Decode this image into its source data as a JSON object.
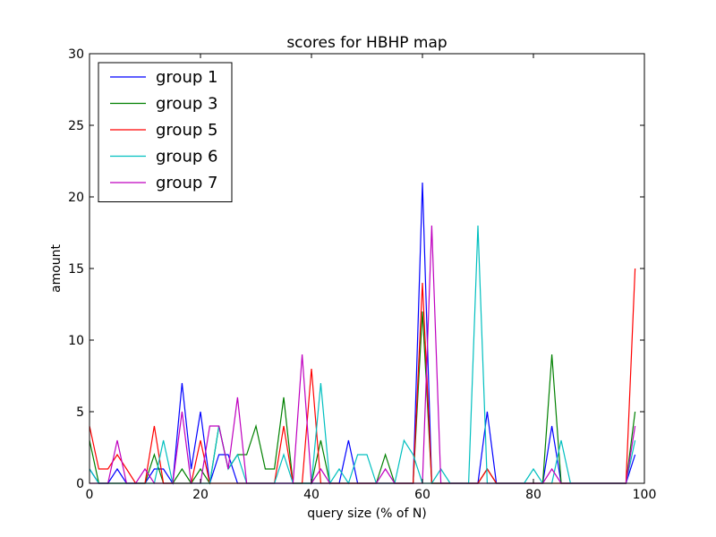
{
  "chart_data": {
    "type": "line",
    "title": "scores for HBHP map",
    "xlabel": "query size (% of N)",
    "ylabel": "amount",
    "xlim": [
      0,
      100
    ],
    "ylim": [
      0,
      30
    ],
    "xticks": [
      0,
      20,
      40,
      60,
      80,
      100
    ],
    "yticks": [
      0,
      5,
      10,
      15,
      20,
      25,
      30
    ],
    "grid": false,
    "legend_position": "top-left",
    "x": [
      0,
      1.67,
      3.33,
      5,
      6.67,
      8.33,
      10,
      11.67,
      13.33,
      15,
      16.67,
      18.33,
      20,
      21.67,
      23.33,
      25,
      26.67,
      28.33,
      30,
      31.67,
      33.33,
      35,
      36.67,
      38.33,
      40,
      41.67,
      43.33,
      45,
      46.67,
      48.33,
      50,
      51.67,
      53.33,
      55,
      56.67,
      58.33,
      60,
      61.67,
      63.33,
      65,
      66.67,
      68.33,
      70,
      71.67,
      73.33,
      75,
      76.67,
      78.33,
      80,
      81.67,
      83.33,
      85,
      86.67,
      88.33,
      90,
      91.67,
      93.33,
      95,
      96.67,
      98.33
    ],
    "series": [
      {
        "name": "group 1",
        "color": "#0000ff",
        "values": [
          1,
          0,
          0,
          1,
          0,
          0,
          0,
          1,
          1,
          0,
          7,
          1,
          5,
          0,
          2,
          2,
          0,
          0,
          0,
          0,
          0,
          0,
          0,
          0,
          0,
          0,
          0,
          0,
          3,
          0,
          0,
          0,
          0,
          0,
          0,
          0,
          21,
          0,
          0,
          0,
          0,
          0,
          0,
          5,
          0,
          0,
          0,
          0,
          0,
          0,
          4,
          0,
          0,
          0,
          0,
          0,
          0,
          0,
          0,
          2
        ]
      },
      {
        "name": "group 3",
        "color": "#008000",
        "values": [
          3,
          0,
          0,
          0,
          0,
          0,
          0,
          2,
          0,
          0,
          1,
          0,
          1,
          0,
          4,
          1,
          2,
          2,
          4,
          1,
          1,
          6,
          0,
          0,
          0,
          3,
          0,
          0,
          0,
          0,
          0,
          0,
          2,
          0,
          0,
          0,
          12,
          0,
          0,
          0,
          0,
          0,
          0,
          1,
          0,
          0,
          0,
          0,
          0,
          0,
          9,
          0,
          0,
          0,
          0,
          0,
          0,
          0,
          0,
          5
        ]
      },
      {
        "name": "group 5",
        "color": "#ff0000",
        "values": [
          4,
          1,
          1,
          2,
          1,
          0,
          0,
          4,
          0,
          0,
          0,
          0,
          3,
          0,
          0,
          0,
          0,
          0,
          0,
          0,
          0,
          4,
          0,
          0,
          8,
          0,
          0,
          0,
          0,
          0,
          0,
          0,
          0,
          0,
          0,
          0,
          14,
          0,
          0,
          0,
          0,
          0,
          0,
          1,
          0,
          0,
          0,
          0,
          0,
          0,
          0,
          0,
          0,
          0,
          0,
          0,
          0,
          0,
          0,
          15
        ]
      },
      {
        "name": "group 6",
        "color": "#00bfbf",
        "values": [
          1,
          0,
          0,
          0,
          0,
          0,
          0,
          0,
          3,
          0,
          0,
          0,
          0,
          0,
          4,
          1,
          2,
          0,
          0,
          0,
          0,
          2,
          0,
          0,
          0,
          7,
          0,
          1,
          0,
          2,
          2,
          0,
          0,
          0,
          3,
          2,
          0,
          0,
          1,
          0,
          0,
          0,
          18,
          0,
          0,
          0,
          0,
          0,
          1,
          0,
          0,
          3,
          0,
          0,
          0,
          0,
          0,
          0,
          0,
          3
        ]
      },
      {
        "name": "group 7",
        "color": "#bf00bf",
        "values": [
          0,
          0,
          0,
          3,
          0,
          0,
          1,
          0,
          0,
          0,
          5,
          0,
          0,
          4,
          4,
          1,
          6,
          0,
          0,
          0,
          0,
          0,
          0,
          9,
          0,
          1,
          0,
          0,
          0,
          0,
          0,
          0,
          1,
          0,
          0,
          0,
          0,
          18,
          0,
          0,
          0,
          0,
          0,
          0,
          0,
          0,
          0,
          0,
          0,
          0,
          1,
          0,
          0,
          0,
          0,
          0,
          0,
          0,
          0,
          4
        ]
      }
    ]
  }
}
